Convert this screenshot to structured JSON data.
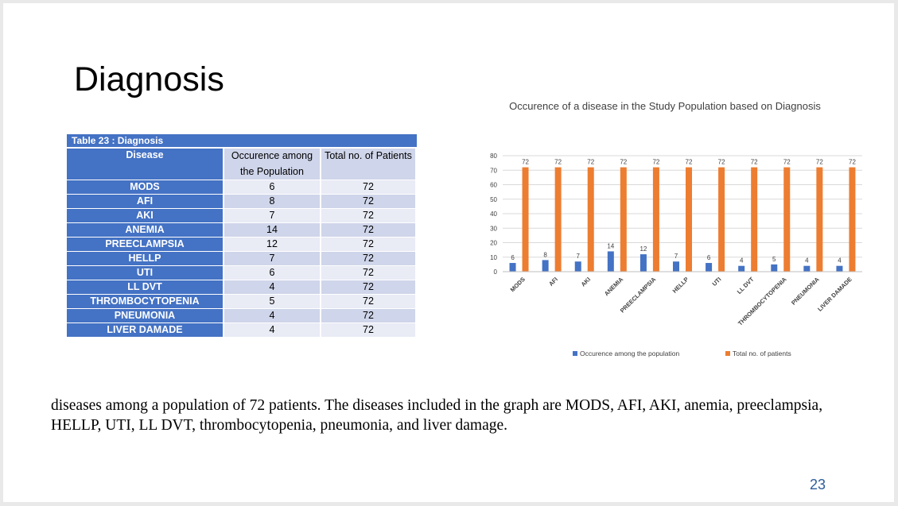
{
  "slide": {
    "title": "Diagnosis",
    "paragraph": "diseases among a population of 72 patients. The diseases included in the graph are MODS, AFI, AKI, anemia, preeclampsia, HELLP, UTI, LL DVT, thrombocytopenia, pneumonia, and liver damage.",
    "page_number": "23"
  },
  "table": {
    "caption": "Table 23 : Diagnosis",
    "headers": [
      "Disease",
      "Occurence among the Population",
      "Total no. of Patients"
    ],
    "rows": [
      [
        "MODS",
        "6",
        "72"
      ],
      [
        "AFI",
        "8",
        "72"
      ],
      [
        "AKI",
        "7",
        "72"
      ],
      [
        "ANEMIA",
        "14",
        "72"
      ],
      [
        "PREECLAMPSIA",
        "12",
        "72"
      ],
      [
        "HELLP",
        "7",
        "72"
      ],
      [
        "UTI",
        "6",
        "72"
      ],
      [
        "LL DVT",
        "4",
        "72"
      ],
      [
        "THROMBOCYTOPENIA",
        "5",
        "72"
      ],
      [
        "PNEUMONIA",
        "4",
        "72"
      ],
      [
        "LIVER DAMADE",
        "4",
        "72"
      ]
    ]
  },
  "chart_data": {
    "type": "bar",
    "title": "Occurence of a disease in the Study Population based on Diagnosis",
    "categories": [
      "MODS",
      "AFI",
      "AKI",
      "ANEMIA",
      "PREECLAMPSIA",
      "HELLP",
      "UTI",
      "LL DVT",
      "THROMBOCYTOPENIA",
      "PNEUMONIA",
      "LIVER DAMADE"
    ],
    "series": [
      {
        "name": "Occurence among the population",
        "values": [
          6,
          8,
          7,
          14,
          12,
          7,
          6,
          4,
          5,
          4,
          4
        ],
        "color": "#4472c4"
      },
      {
        "name": "Total no. of patients",
        "values": [
          72,
          72,
          72,
          72,
          72,
          72,
          72,
          72,
          72,
          72,
          72
        ],
        "color": "#ed7d31"
      }
    ],
    "ylim": [
      0,
      80
    ],
    "yticks": [
      0,
      10,
      20,
      30,
      40,
      50,
      60,
      70,
      80
    ],
    "grid": true,
    "legend": "bottom",
    "data_labels": true
  }
}
